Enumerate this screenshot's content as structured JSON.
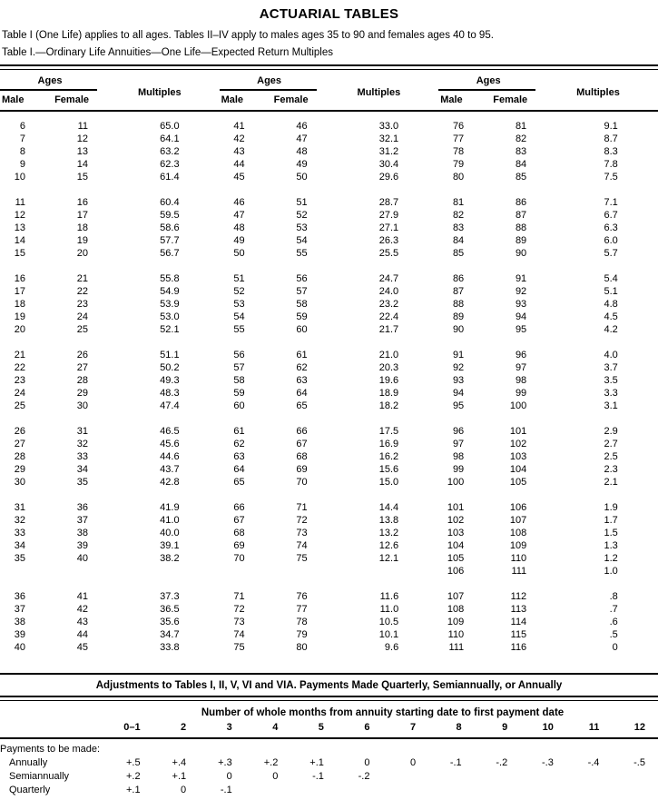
{
  "page": {
    "title": "ACTUARIAL TABLES",
    "intro": "Table I (One Life) applies to all ages. Tables II–IV apply to males ages 35 to 90 and females ages 40 to 95.",
    "table_caption": "Table I.—Ordinary Life Annuities—One Life—Expected Return Multiples"
  },
  "table1": {
    "headers": {
      "ages": "Ages",
      "male": "Male",
      "female": "Female",
      "multiples": "Multiples"
    },
    "groups": [
      [
        [
          "6",
          "11",
          "65.0",
          "41",
          "46",
          "33.0",
          "76",
          "81",
          "9.1"
        ],
        [
          "7",
          "12",
          "64.1",
          "42",
          "47",
          "32.1",
          "77",
          "82",
          "8.7"
        ],
        [
          "8",
          "13",
          "63.2",
          "43",
          "48",
          "31.2",
          "78",
          "83",
          "8.3"
        ],
        [
          "9",
          "14",
          "62.3",
          "44",
          "49",
          "30.4",
          "79",
          "84",
          "7.8"
        ],
        [
          "10",
          "15",
          "61.4",
          "45",
          "50",
          "29.6",
          "80",
          "85",
          "7.5"
        ]
      ],
      [
        [
          "11",
          "16",
          "60.4",
          "46",
          "51",
          "28.7",
          "81",
          "86",
          "7.1"
        ],
        [
          "12",
          "17",
          "59.5",
          "47",
          "52",
          "27.9",
          "82",
          "87",
          "6.7"
        ],
        [
          "13",
          "18",
          "58.6",
          "48",
          "53",
          "27.1",
          "83",
          "88",
          "6.3"
        ],
        [
          "14",
          "19",
          "57.7",
          "49",
          "54",
          "26.3",
          "84",
          "89",
          "6.0"
        ],
        [
          "15",
          "20",
          "56.7",
          "50",
          "55",
          "25.5",
          "85",
          "90",
          "5.7"
        ]
      ],
      [
        [
          "16",
          "21",
          "55.8",
          "51",
          "56",
          "24.7",
          "86",
          "91",
          "5.4"
        ],
        [
          "17",
          "22",
          "54.9",
          "52",
          "57",
          "24.0",
          "87",
          "92",
          "5.1"
        ],
        [
          "18",
          "23",
          "53.9",
          "53",
          "58",
          "23.2",
          "88",
          "93",
          "4.8"
        ],
        [
          "19",
          "24",
          "53.0",
          "54",
          "59",
          "22.4",
          "89",
          "94",
          "4.5"
        ],
        [
          "20",
          "25",
          "52.1",
          "55",
          "60",
          "21.7",
          "90",
          "95",
          "4.2"
        ]
      ],
      [
        [
          "21",
          "26",
          "51.1",
          "56",
          "61",
          "21.0",
          "91",
          "96",
          "4.0"
        ],
        [
          "22",
          "27",
          "50.2",
          "57",
          "62",
          "20.3",
          "92",
          "97",
          "3.7"
        ],
        [
          "23",
          "28",
          "49.3",
          "58",
          "63",
          "19.6",
          "93",
          "98",
          "3.5"
        ],
        [
          "24",
          "29",
          "48.3",
          "59",
          "64",
          "18.9",
          "94",
          "99",
          "3.3"
        ],
        [
          "25",
          "30",
          "47.4",
          "60",
          "65",
          "18.2",
          "95",
          "100",
          "3.1"
        ]
      ],
      [
        [
          "26",
          "31",
          "46.5",
          "61",
          "66",
          "17.5",
          "96",
          "101",
          "2.9"
        ],
        [
          "27",
          "32",
          "45.6",
          "62",
          "67",
          "16.9",
          "97",
          "102",
          "2.7"
        ],
        [
          "28",
          "33",
          "44.6",
          "63",
          "68",
          "16.2",
          "98",
          "103",
          "2.5"
        ],
        [
          "29",
          "34",
          "43.7",
          "64",
          "69",
          "15.6",
          "99",
          "104",
          "2.3"
        ],
        [
          "30",
          "35",
          "42.8",
          "65",
          "70",
          "15.0",
          "100",
          "105",
          "2.1"
        ]
      ],
      [
        [
          "31",
          "36",
          "41.9",
          "66",
          "71",
          "14.4",
          "101",
          "106",
          "1.9"
        ],
        [
          "32",
          "37",
          "41.0",
          "67",
          "72",
          "13.8",
          "102",
          "107",
          "1.7"
        ],
        [
          "33",
          "38",
          "40.0",
          "68",
          "73",
          "13.2",
          "103",
          "108",
          "1.5"
        ],
        [
          "34",
          "39",
          "39.1",
          "69",
          "74",
          "12.6",
          "104",
          "109",
          "1.3"
        ],
        [
          "35",
          "40",
          "38.2",
          "70",
          "75",
          "12.1",
          "105",
          "110",
          "1.2"
        ],
        [
          "",
          "",
          "",
          "",
          "",
          "",
          "106",
          "111",
          "1.0"
        ]
      ],
      [
        [
          "36",
          "41",
          "37.3",
          "71",
          "76",
          "11.6",
          "107",
          "112",
          ".8"
        ],
        [
          "37",
          "42",
          "36.5",
          "72",
          "77",
          "11.0",
          "108",
          "113",
          ".7"
        ],
        [
          "38",
          "43",
          "35.6",
          "73",
          "78",
          "10.5",
          "109",
          "114",
          ".6"
        ],
        [
          "39",
          "44",
          "34.7",
          "74",
          "79",
          "10.1",
          "110",
          "115",
          ".5"
        ],
        [
          "40",
          "45",
          "33.8",
          "75",
          "80",
          "9.6",
          "111",
          "116",
          "0"
        ]
      ]
    ]
  },
  "adjustments": {
    "title": "Adjustments to Tables I, II, V, VI and VIA. Payments Made Quarterly, Semiannually, or Annually",
    "subtitle": "Number of whole months from annuity starting date to first payment date",
    "month_headers": [
      "0–1",
      "2",
      "3",
      "4",
      "5",
      "6",
      "7",
      "8",
      "9",
      "10",
      "11",
      "12"
    ],
    "row_group_label": "Payments to be made:",
    "rows": [
      {
        "label": "Annually",
        "values": [
          "+.5",
          "+.4",
          "+.3",
          "+.2",
          "+.1",
          "0",
          "0",
          "-.1",
          "-.2",
          "-.3",
          "-.4",
          "-.5"
        ]
      },
      {
        "label": "Semiannually",
        "values": [
          "+.2",
          "+.1",
          "0",
          "0",
          "-.1",
          "-.2",
          "",
          "",
          "",
          "",
          "",
          ""
        ]
      },
      {
        "label": "Quarterly",
        "values": [
          "+.1",
          "0",
          "-.1",
          "",
          "",
          "",
          "",
          "",
          "",
          "",
          "",
          ""
        ]
      }
    ]
  }
}
